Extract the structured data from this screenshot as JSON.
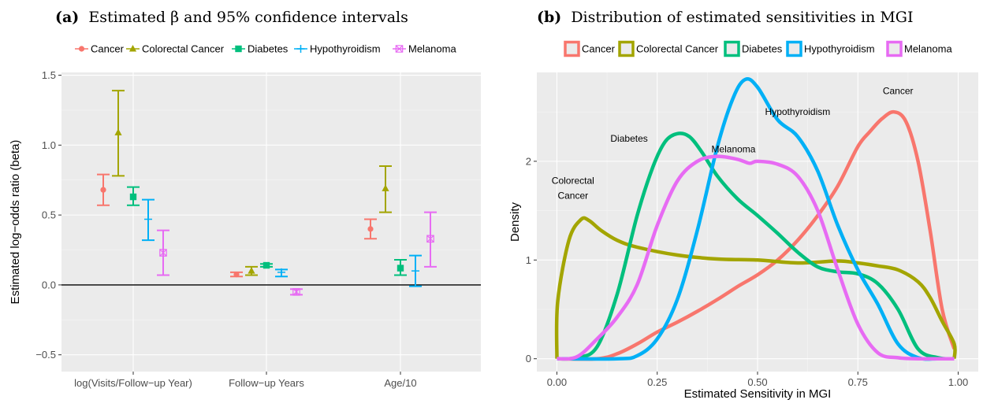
{
  "panel_a": {
    "title_tag": "(a)",
    "title_text": "Estimated β and 95% confidence intervals",
    "chart_data": {
      "type": "errorbar",
      "ylabel": "Estimated log−odds ratio (beta)",
      "xlabel": "",
      "categories": [
        "log(Visits/Follow−up Year)",
        "Follow−up Years",
        "Age/10"
      ],
      "ylim": [
        -0.62,
        1.52
      ],
      "yticks": [
        -0.5,
        0.0,
        0.5,
        1.0,
        1.5
      ],
      "ytick_labels": [
        "−0.5",
        "0.0",
        "0.5",
        "1.0",
        "1.5"
      ],
      "hline": 0,
      "legend_position": "top",
      "series": [
        {
          "name": "Cancer",
          "color": "#f8766d",
          "marker": "circle",
          "estimates": [
            0.68,
            0.075,
            0.4
          ],
          "lower": [
            0.57,
            0.06,
            0.33
          ],
          "upper": [
            0.79,
            0.09,
            0.47
          ]
        },
        {
          "name": "Colorectal Cancer",
          "color": "#a3a500",
          "marker": "triangle",
          "estimates": [
            1.09,
            0.1,
            0.69
          ],
          "lower": [
            0.78,
            0.07,
            0.52
          ],
          "upper": [
            1.39,
            0.13,
            0.85
          ]
        },
        {
          "name": "Diabetes",
          "color": "#00bf7d",
          "marker": "square",
          "estimates": [
            0.63,
            0.14,
            0.12
          ],
          "lower": [
            0.57,
            0.13,
            0.07
          ],
          "upper": [
            0.7,
            0.15,
            0.18
          ]
        },
        {
          "name": "Hypothyroidism",
          "color": "#00b0f6",
          "marker": "plus",
          "estimates": [
            0.47,
            0.09,
            0.1
          ],
          "lower": [
            0.32,
            0.06,
            -0.01
          ],
          "upper": [
            0.61,
            0.11,
            0.21
          ]
        },
        {
          "name": "Melanoma",
          "color": "#e76bf3",
          "marker": "squarecross",
          "estimates": [
            0.23,
            -0.05,
            0.33
          ],
          "lower": [
            0.07,
            -0.07,
            0.13
          ],
          "upper": [
            0.39,
            -0.03,
            0.52
          ]
        }
      ]
    }
  },
  "panel_b": {
    "title_tag": "(b)",
    "title_text": "Distribution of estimated sensitivities in MGI",
    "chart_data": {
      "type": "density",
      "xlabel": "Estimated Sensitivity in MGI",
      "ylabel": "Density",
      "xlim": [
        -0.05,
        1.05
      ],
      "ylim": [
        -0.13,
        2.9
      ],
      "xticks": [
        0.0,
        0.25,
        0.5,
        0.75,
        1.0
      ],
      "xtick_labels": [
        "0.00",
        "0.25",
        "0.50",
        "0.75",
        "1.00"
      ],
      "yticks": [
        0,
        1,
        2
      ],
      "ytick_labels": [
        "0",
        "1",
        "2"
      ],
      "legend_position": "top",
      "series": [
        {
          "name": "Cancer",
          "color": "#f8766d",
          "x": [
            0,
            0.1,
            0.15,
            0.2,
            0.25,
            0.3,
            0.35,
            0.4,
            0.45,
            0.5,
            0.55,
            0.6,
            0.65,
            0.7,
            0.75,
            0.78,
            0.81,
            0.84,
            0.87,
            0.9,
            0.93,
            0.96,
            0.99
          ],
          "y": [
            0,
            0,
            0.05,
            0.15,
            0.27,
            0.37,
            0.48,
            0.6,
            0.73,
            0.85,
            1.0,
            1.2,
            1.45,
            1.75,
            2.15,
            2.3,
            2.43,
            2.5,
            2.4,
            2.0,
            1.3,
            0.5,
            0.1
          ]
        },
        {
          "name": "Colorectal Cancer",
          "color": "#a3a500",
          "x": [
            0,
            0.002,
            0.03,
            0.06,
            0.08,
            0.11,
            0.15,
            0.2,
            0.3,
            0.4,
            0.5,
            0.6,
            0.7,
            0.75,
            0.8,
            0.85,
            0.9,
            0.93,
            0.96,
            0.99,
            0.99
          ],
          "y": [
            0,
            0.58,
            1.2,
            1.41,
            1.4,
            1.3,
            1.2,
            1.13,
            1.05,
            1.01,
            1.0,
            0.97,
            0.99,
            0.97,
            0.94,
            0.9,
            0.78,
            0.62,
            0.38,
            0.15,
            0
          ]
        },
        {
          "name": "Diabetes",
          "color": "#00bf7d",
          "x": [
            0,
            0.05,
            0.1,
            0.15,
            0.2,
            0.24,
            0.27,
            0.3,
            0.33,
            0.36,
            0.4,
            0.45,
            0.5,
            0.55,
            0.6,
            0.65,
            0.7,
            0.75,
            0.8,
            0.85,
            0.9,
            0.95,
            0.99
          ],
          "y": [
            0,
            0.01,
            0.12,
            0.65,
            1.45,
            1.95,
            2.2,
            2.28,
            2.25,
            2.1,
            1.85,
            1.62,
            1.45,
            1.27,
            1.08,
            0.93,
            0.88,
            0.86,
            0.76,
            0.5,
            0.1,
            0.01,
            0
          ]
        },
        {
          "name": "Hypothyroidism",
          "color": "#00b0f6",
          "x": [
            0,
            0.15,
            0.2,
            0.25,
            0.3,
            0.35,
            0.4,
            0.44,
            0.47,
            0.5,
            0.55,
            0.6,
            0.65,
            0.7,
            0.75,
            0.8,
            0.85,
            0.9,
            0.95,
            0.99
          ],
          "y": [
            0,
            0,
            0.03,
            0.2,
            0.6,
            1.3,
            2.15,
            2.65,
            2.83,
            2.75,
            2.42,
            2.25,
            1.9,
            1.35,
            0.9,
            0.55,
            0.15,
            0.01,
            0,
            0
          ]
        },
        {
          "name": "Melanoma",
          "color": "#e76bf3",
          "x": [
            0,
            0.05,
            0.1,
            0.15,
            0.2,
            0.25,
            0.3,
            0.35,
            0.4,
            0.45,
            0.48,
            0.5,
            0.55,
            0.6,
            0.65,
            0.7,
            0.75,
            0.8,
            0.85,
            0.9,
            0.99
          ],
          "y": [
            0,
            0.02,
            0.2,
            0.42,
            0.75,
            1.35,
            1.8,
            2.0,
            2.05,
            2.02,
            1.98,
            2.0,
            1.97,
            1.85,
            1.5,
            0.9,
            0.35,
            0.06,
            0.01,
            0,
            0
          ]
        }
      ],
      "annotations": [
        {
          "lines": [
            "Cancer"
          ],
          "x": 0.85,
          "y": 2.68
        },
        {
          "lines": [
            "Hypothyroidism"
          ],
          "x": 0.6,
          "y": 2.47
        },
        {
          "lines": [
            "Diabetes"
          ],
          "x": 0.18,
          "y": 2.2
        },
        {
          "lines": [
            "Melanoma"
          ],
          "x": 0.44,
          "y": 2.09
        },
        {
          "lines": [
            "Colorectal",
            "Cancer"
          ],
          "x": 0.04,
          "y": 1.77
        }
      ]
    }
  }
}
